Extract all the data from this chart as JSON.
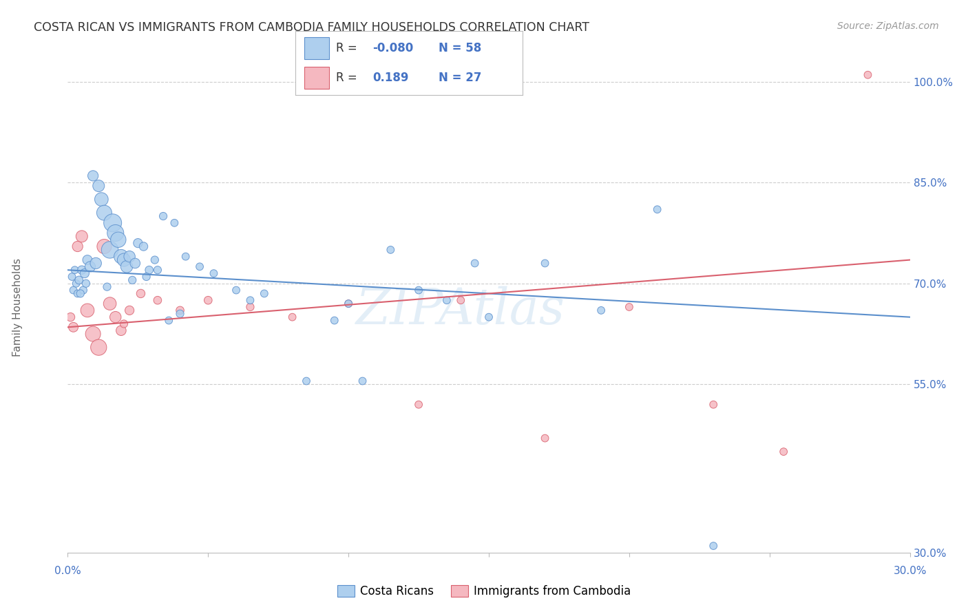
{
  "title": "COSTA RICAN VS IMMIGRANTS FROM CAMBODIA FAMILY HOUSEHOLDS CORRELATION CHART",
  "source": "Source: ZipAtlas.com",
  "ylabel": "Family Households",
  "watermark": "ZIPAtlas",
  "xlim": [
    0.0,
    30.0
  ],
  "ylim": [
    30.0,
    103.0
  ],
  "blue_color": "#AECFEE",
  "pink_color": "#F5B8C0",
  "blue_line_color": "#5B8FCC",
  "pink_line_color": "#D9606E",
  "legend_R1": "-0.080",
  "legend_N1": "58",
  "legend_R2": "0.189",
  "legend_N2": "27",
  "blue_scatter_x": [
    0.15,
    0.2,
    0.25,
    0.3,
    0.35,
    0.4,
    0.5,
    0.6,
    0.7,
    0.8,
    0.9,
    1.0,
    1.1,
    1.2,
    1.3,
    1.5,
    1.6,
    1.7,
    1.8,
    1.9,
    2.0,
    2.1,
    2.2,
    2.4,
    2.5,
    2.7,
    2.9,
    3.1,
    3.4,
    3.8,
    4.2,
    4.7,
    5.2,
    6.0,
    7.0,
    8.5,
    9.5,
    10.5,
    11.5,
    12.5,
    13.5,
    15.0,
    17.0,
    19.0,
    21.0,
    23.0,
    1.4,
    0.55,
    0.65,
    0.45,
    2.8,
    3.2,
    4.0,
    10.0,
    6.5,
    3.6,
    2.3,
    14.5
  ],
  "blue_scatter_y": [
    71.0,
    69.0,
    72.0,
    70.0,
    68.5,
    70.5,
    72.0,
    71.5,
    73.5,
    72.5,
    86.0,
    73.0,
    84.5,
    82.5,
    80.5,
    75.0,
    79.0,
    77.5,
    76.5,
    74.0,
    73.5,
    72.5,
    74.0,
    73.0,
    76.0,
    75.5,
    72.0,
    73.5,
    80.0,
    79.0,
    74.0,
    72.5,
    71.5,
    69.0,
    68.5,
    55.5,
    64.5,
    55.5,
    75.0,
    69.0,
    67.5,
    65.0,
    73.0,
    66.0,
    81.0,
    31.0,
    69.5,
    69.0,
    70.0,
    68.5,
    71.0,
    72.0,
    65.5,
    67.0,
    67.5,
    64.5,
    70.5,
    73.0
  ],
  "blue_scatter_size": [
    60,
    60,
    60,
    60,
    60,
    70,
    80,
    90,
    100,
    120,
    120,
    140,
    150,
    200,
    250,
    310,
    350,
    300,
    260,
    220,
    190,
    160,
    140,
    110,
    90,
    80,
    70,
    65,
    65,
    60,
    60,
    60,
    60,
    60,
    60,
    60,
    60,
    60,
    60,
    60,
    60,
    60,
    60,
    60,
    60,
    60,
    65,
    65,
    65,
    65,
    65,
    65,
    65,
    60,
    60,
    60,
    65,
    60
  ],
  "pink_scatter_x": [
    0.1,
    0.2,
    0.35,
    0.5,
    0.7,
    0.9,
    1.1,
    1.3,
    1.5,
    1.7,
    1.9,
    2.2,
    2.6,
    3.2,
    4.0,
    5.0,
    6.5,
    8.0,
    10.0,
    12.5,
    14.0,
    17.0,
    20.0,
    23.0,
    25.5,
    28.5,
    2.0
  ],
  "pink_scatter_y": [
    65.0,
    63.5,
    75.5,
    77.0,
    66.0,
    62.5,
    60.5,
    75.5,
    67.0,
    65.0,
    63.0,
    66.0,
    68.5,
    67.5,
    66.0,
    67.5,
    66.5,
    65.0,
    67.0,
    52.0,
    67.5,
    47.0,
    66.5,
    52.0,
    45.0,
    101.0,
    64.0
  ],
  "pink_scatter_size": [
    80,
    100,
    120,
    150,
    200,
    250,
    280,
    230,
    180,
    140,
    110,
    90,
    80,
    70,
    70,
    70,
    65,
    60,
    60,
    60,
    60,
    60,
    60,
    60,
    60,
    60,
    65
  ],
  "axis_label_color": "#4472C4",
  "title_color": "#333333",
  "background_color": "#ffffff",
  "grid_color": "#CCCCCC",
  "ytick_vals": [
    55.0,
    70.0,
    85.0,
    100.0
  ],
  "blue_trend": [
    72.0,
    65.0
  ],
  "pink_trend": [
    63.5,
    73.5
  ]
}
